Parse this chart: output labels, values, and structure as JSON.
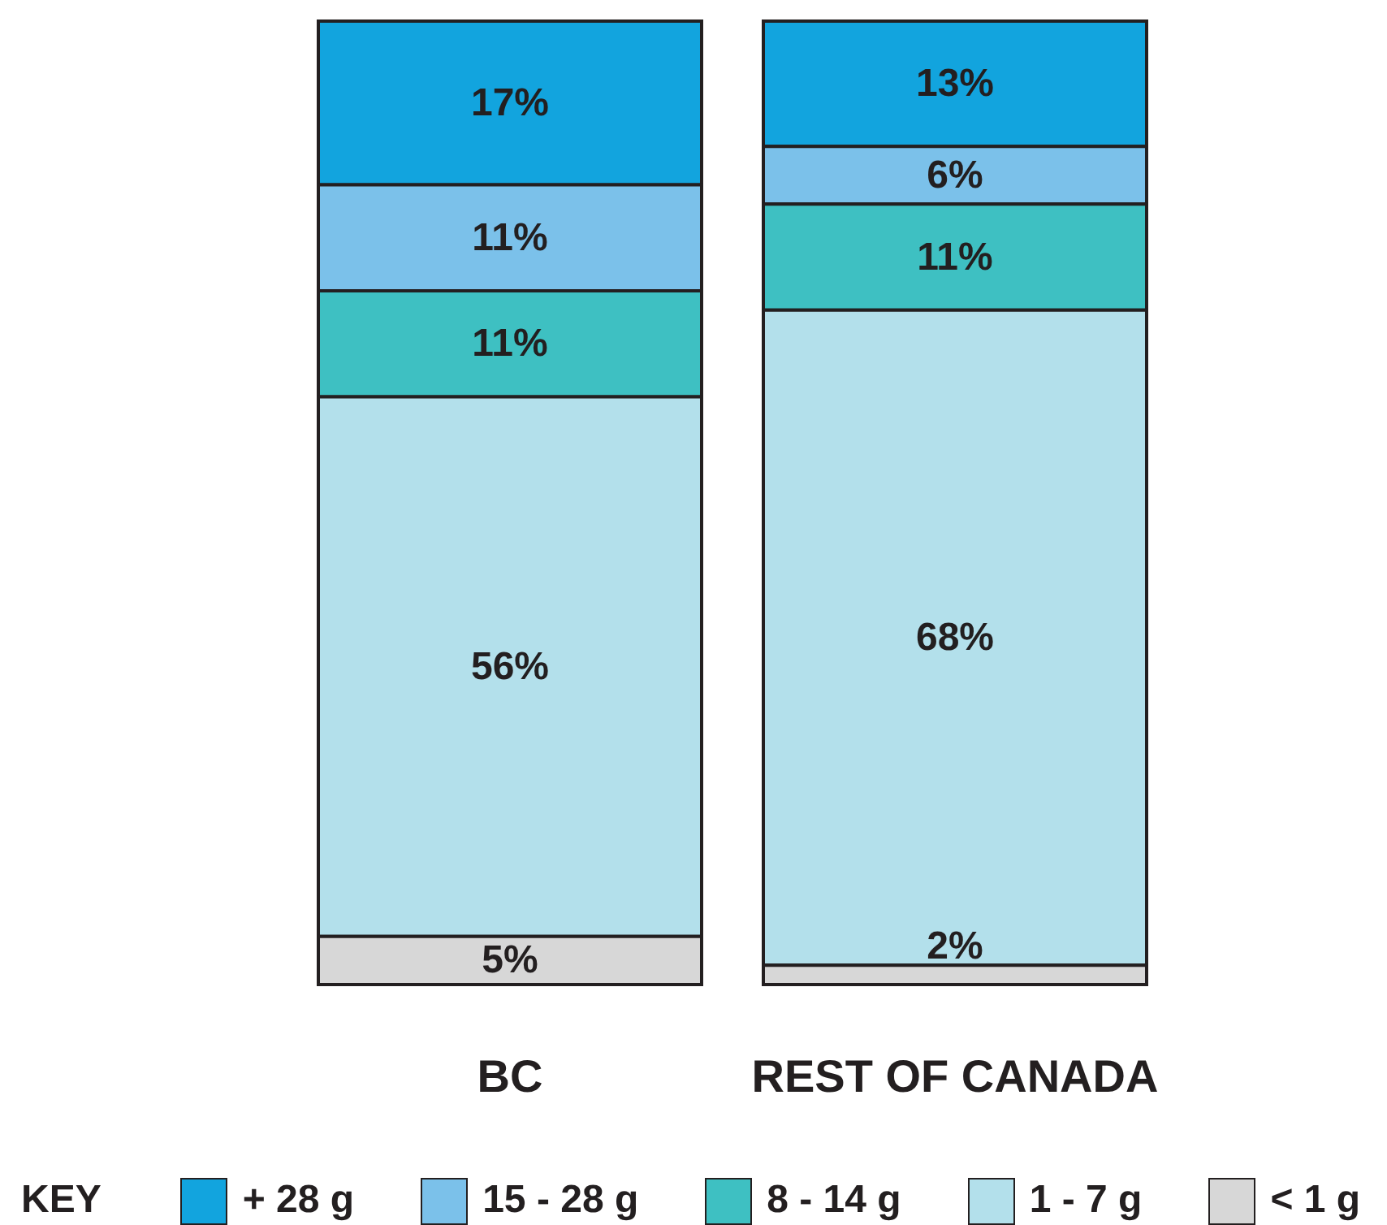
{
  "chart_data": {
    "type": "bar",
    "stacked": true,
    "categories": [
      "BC",
      "REST OF CANADA"
    ],
    "series": [
      {
        "name": "< 1 g",
        "color": "#d7d7d7",
        "values": [
          5,
          2
        ],
        "value_labels": [
          "5%",
          "2%"
        ]
      },
      {
        "name": "1 - 7 g",
        "color": "#b3e0eb",
        "values": [
          56,
          68
        ],
        "value_labels": [
          "56%",
          "68%"
        ]
      },
      {
        "name": "8 - 14 g",
        "color": "#3ec0c2",
        "values": [
          11,
          11
        ],
        "value_labels": [
          "11%",
          "11%"
        ]
      },
      {
        "name": "15 - 28 g",
        "color": "#7bc1ea",
        "values": [
          11,
          6
        ],
        "value_labels": [
          "11%",
          "6%"
        ]
      },
      {
        "name": "+ 28 g",
        "color": "#12a4de",
        "values": [
          17,
          13
        ],
        "value_labels": [
          "17%",
          "13%"
        ]
      }
    ],
    "legend": "bottom",
    "legend_title": "KEY",
    "tick_labels": "x"
  }
}
